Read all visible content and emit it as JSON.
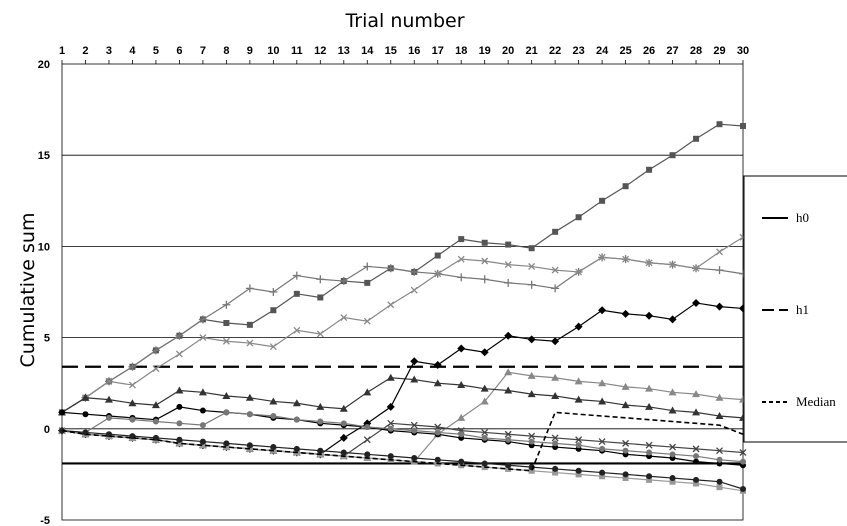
{
  "chart_data": {
    "type": "line",
    "title": "",
    "xlabel": "Trial number",
    "ylabel": "Cumulative sum",
    "x": [
      1,
      2,
      3,
      4,
      5,
      6,
      7,
      8,
      9,
      10,
      11,
      12,
      13,
      14,
      15,
      16,
      17,
      18,
      19,
      20,
      21,
      22,
      23,
      24,
      25,
      26,
      27,
      28,
      29,
      30
    ],
    "xlim": [
      1,
      30
    ],
    "ylim": [
      -5,
      20
    ],
    "y_ticks": [
      -5,
      0,
      5,
      10,
      15,
      20
    ],
    "x_axis_position": "top",
    "grid": true,
    "legend_position": "right",
    "thresholds": [
      {
        "name": "h0",
        "value": -1.9,
        "style": "solid"
      },
      {
        "name": "h1",
        "value": 3.4,
        "style": "long-dash"
      }
    ],
    "median": {
      "name": "Median",
      "style": "short-dash",
      "values": [
        -0.1,
        -0.3,
        -0.4,
        -0.5,
        -0.6,
        -0.8,
        -0.9,
        -1.0,
        -1.1,
        -1.2,
        -1.3,
        -1.4,
        -1.5,
        -1.6,
        -1.7,
        -1.8,
        -1.9,
        -2.0,
        -2.1,
        -2.2,
        -2.3,
        0.9,
        0.8,
        0.7,
        0.6,
        0.5,
        0.4,
        0.3,
        0.2,
        -0.3
      ]
    },
    "series": [
      {
        "color": "#555555",
        "marker": "square",
        "values": [
          0.9,
          1.7,
          2.6,
          3.4,
          4.3,
          5.1,
          6.0,
          5.8,
          5.7,
          6.5,
          7.4,
          7.2,
          8.1,
          8.0,
          8.8,
          8.6,
          9.5,
          10.4,
          10.2,
          10.1,
          9.9,
          10.8,
          11.6,
          12.5,
          13.3,
          14.2,
          15.0,
          15.9,
          16.7,
          16.6
        ]
      },
      {
        "color": "#777777",
        "marker": "plus",
        "values": [
          0.9,
          1.7,
          2.6,
          3.4,
          4.3,
          5.1,
          6.0,
          6.8,
          7.7,
          7.5,
          8.4,
          8.2,
          8.1,
          8.9,
          8.8,
          8.6,
          8.5,
          8.3,
          8.2,
          8.0,
          7.9,
          7.7,
          8.6,
          9.4,
          9.3,
          9.1,
          9.0,
          8.8,
          8.7,
          8.5
        ]
      },
      {
        "color": "#888888",
        "marker": "x",
        "values": [
          0.9,
          1.7,
          2.6,
          2.4,
          3.3,
          4.1,
          5.0,
          4.8,
          4.7,
          4.5,
          5.4,
          5.2,
          6.1,
          5.9,
          6.8,
          7.6,
          8.5,
          9.3,
          9.2,
          9.0,
          8.9,
          8.7,
          8.6,
          9.4,
          9.3,
          9.1,
          9.0,
          8.8,
          9.7,
          10.5
        ]
      },
      {
        "color": "#888888",
        "marker": "triangle",
        "values": [
          -0.1,
          -0.3,
          -0.4,
          -0.5,
          -0.6,
          -0.8,
          -0.9,
          -1.0,
          -1.1,
          -1.2,
          -1.3,
          -1.4,
          -1.5,
          -1.6,
          -1.7,
          -1.8,
          -0.3,
          0.6,
          1.5,
          3.1,
          2.9,
          2.8,
          2.6,
          2.5,
          2.3,
          2.2,
          2.0,
          1.9,
          1.7,
          1.6
        ]
      },
      {
        "color": "#333333",
        "marker": "triangle",
        "values": [
          0.9,
          1.7,
          1.6,
          1.4,
          1.3,
          2.1,
          2.0,
          1.8,
          1.7,
          1.5,
          1.4,
          1.2,
          1.1,
          2.0,
          2.8,
          2.7,
          2.5,
          2.4,
          2.2,
          2.1,
          1.9,
          1.8,
          1.6,
          1.5,
          1.3,
          1.2,
          1.0,
          0.9,
          0.7,
          0.6
        ]
      },
      {
        "color": "#000000",
        "marker": "diamond",
        "values": [
          -0.1,
          -0.3,
          -0.4,
          -0.5,
          -0.6,
          -0.8,
          -0.9,
          -1.0,
          -1.1,
          -1.2,
          -1.3,
          -1.4,
          -0.5,
          0.3,
          1.2,
          3.7,
          3.5,
          4.4,
          4.2,
          5.1,
          4.9,
          4.8,
          5.6,
          6.5,
          6.3,
          6.2,
          6.0,
          6.9,
          6.7,
          6.6
        ]
      },
      {
        "color": "#444444",
        "marker": "x",
        "values": [
          -0.1,
          -0.3,
          -0.4,
          -0.5,
          -0.6,
          -0.8,
          -0.9,
          -1.0,
          -1.1,
          -1.2,
          -1.3,
          -1.4,
          -1.5,
          -0.6,
          0.3,
          0.2,
          0.1,
          -0.1,
          -0.2,
          -0.3,
          -0.4,
          -0.5,
          -0.6,
          -0.7,
          -0.8,
          -0.9,
          -1.0,
          -1.1,
          -1.2,
          -1.3
        ]
      },
      {
        "color": "#000000",
        "marker": "circle",
        "values": [
          0.9,
          0.8,
          0.7,
          0.6,
          0.5,
          1.2,
          1.0,
          0.9,
          0.8,
          0.6,
          0.5,
          0.3,
          0.2,
          0.1,
          -0.1,
          -0.2,
          -0.3,
          -0.5,
          -0.6,
          -0.7,
          -0.9,
          -1.0,
          -1.1,
          -1.2,
          -1.4,
          -1.5,
          -1.6,
          -1.8,
          -1.9,
          -2.0
        ]
      },
      {
        "color": "#777777",
        "marker": "circle",
        "values": [
          -0.1,
          -0.2,
          0.6,
          0.5,
          0.4,
          0.3,
          0.2,
          0.9,
          0.8,
          0.7,
          0.5,
          0.4,
          0.3,
          0.1,
          0.0,
          -0.1,
          -0.2,
          -0.3,
          -0.5,
          -0.6,
          -0.7,
          -0.8,
          -0.9,
          -1.1,
          -1.2,
          -1.3,
          -1.4,
          -1.5,
          -1.7,
          -1.8
        ]
      },
      {
        "color": "#999999",
        "marker": "square",
        "values": [
          -0.1,
          -0.3,
          -0.4,
          -0.5,
          -0.6,
          -0.8,
          -0.9,
          -1.0,
          -1.1,
          -1.2,
          -1.3,
          -1.4,
          -1.5,
          -1.6,
          -1.7,
          -1.8,
          -1.9,
          -2.0,
          -2.1,
          -2.2,
          -2.3,
          -2.4,
          -2.5,
          -2.6,
          -2.7,
          -2.8,
          -2.9,
          -3.0,
          -3.2,
          -3.4
        ]
      },
      {
        "color": "#222222",
        "marker": "circle",
        "values": [
          -0.1,
          -0.2,
          -0.3,
          -0.4,
          -0.5,
          -0.6,
          -0.7,
          -0.8,
          -0.9,
          -1.0,
          -1.1,
          -1.2,
          -1.3,
          -1.4,
          -1.5,
          -1.6,
          -1.7,
          -1.8,
          -1.9,
          -2.0,
          -2.1,
          -2.2,
          -2.3,
          -2.4,
          -2.5,
          -2.6,
          -2.7,
          -2.8,
          -2.9,
          -3.3
        ]
      }
    ]
  }
}
